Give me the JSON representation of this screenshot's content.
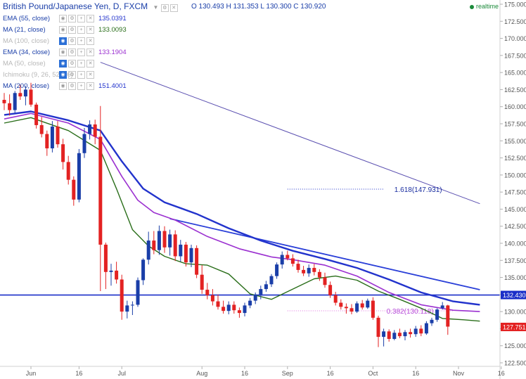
{
  "header": {
    "title": "British Pound/Japanese Yen, D, FXCM",
    "ohlc": "O 130.493 H 131.353 L 130.300 C 130.920",
    "realtime": "realtime"
  },
  "indicators": [
    {
      "name": "EMA (55, close)",
      "value": "135.0391",
      "color": "#2233cc",
      "faded": false
    },
    {
      "name": "MA (21, close)",
      "value": "133.0093",
      "color": "#2a6e1a",
      "faded": false
    },
    {
      "name": "MA (100, close)",
      "value": "",
      "color": "#b8b8b8",
      "faded": true
    },
    {
      "name": "EMA (34, close)",
      "value": "133.1904",
      "color": "#9b30d0",
      "faded": false
    },
    {
      "name": "MA (50, close)",
      "value": "",
      "color": "#b8b8b8",
      "faded": true
    },
    {
      "name": "Ichimoku (9, 26, 52, 26)",
      "value": "",
      "color": "#b8b8b8",
      "faded": true
    },
    {
      "name": "MA (200, close)",
      "value": "151.4001",
      "color": "#2233cc",
      "faded": false
    }
  ],
  "chart_data": {
    "type": "candlestick",
    "ylim": [
      122.5,
      175.0
    ],
    "y_ticks": [
      "122.500",
      "125.000",
      "127.500",
      "130.000",
      "132.500",
      "135.000",
      "137.500",
      "140.000",
      "142.500",
      "145.000",
      "147.500",
      "150.000",
      "152.500",
      "155.000",
      "157.500",
      "160.000",
      "162.500",
      "165.000",
      "167.500",
      "170.000",
      "172.500",
      "175.000"
    ],
    "x_ticks": [
      {
        "label": "Jun",
        "index": 5
      },
      {
        "label": "16",
        "index": 14
      },
      {
        "label": "Jul",
        "index": 22
      },
      {
        "label": "Aug",
        "index": 37
      },
      {
        "label": "16",
        "index": 45
      },
      {
        "label": "Sep",
        "index": 53
      },
      {
        "label": "16",
        "index": 61
      },
      {
        "label": "Oct",
        "index": 69
      },
      {
        "label": "16",
        "index": 77
      },
      {
        "label": "Nov",
        "index": 85
      },
      {
        "label": "16",
        "index": 93
      }
    ],
    "candles": [
      [
        161.0,
        162.0,
        159.5,
        160.5
      ],
      [
        160.5,
        161.8,
        158.7,
        159.5
      ],
      [
        159.5,
        162.3,
        159.0,
        162.0
      ],
      [
        162.0,
        163.2,
        161.0,
        161.5
      ],
      [
        161.5,
        163.0,
        160.2,
        162.5
      ],
      [
        162.5,
        163.5,
        160.0,
        160.3
      ],
      [
        160.3,
        160.6,
        156.8,
        157.3
      ],
      [
        157.3,
        158.5,
        155.5,
        156.0
      ],
      [
        156.0,
        156.5,
        152.8,
        153.9
      ],
      [
        153.9,
        157.9,
        153.3,
        157.1
      ],
      [
        157.1,
        157.9,
        154.0,
        154.5
      ],
      [
        154.5,
        155.3,
        150.8,
        151.9
      ],
      [
        151.9,
        152.8,
        148.6,
        149.3
      ],
      [
        149.3,
        149.8,
        145.5,
        146.4
      ],
      [
        146.4,
        153.8,
        146.0,
        153.2
      ],
      [
        153.2,
        156.9,
        152.5,
        156.0
      ],
      [
        156.0,
        158.0,
        155.2,
        157.4
      ],
      [
        157.4,
        158.1,
        154.5,
        155.6
      ],
      [
        155.6,
        160.1,
        133.0,
        139.8
      ],
      [
        139.8,
        140.1,
        133.3,
        135.8
      ],
      [
        135.8,
        137.0,
        133.8,
        136.0
      ],
      [
        136.0,
        137.3,
        134.1,
        134.7
      ],
      [
        134.7,
        135.4,
        128.8,
        130.0
      ],
      [
        130.0,
        131.6,
        129.0,
        130.9
      ],
      [
        130.9,
        131.5,
        129.5,
        131.0
      ],
      [
        131.0,
        135.0,
        130.7,
        134.6
      ],
      [
        134.6,
        137.8,
        133.9,
        137.6
      ],
      [
        137.6,
        141.7,
        136.9,
        140.4
      ],
      [
        140.4,
        141.8,
        138.4,
        139.0
      ],
      [
        139.0,
        142.6,
        138.3,
        141.8
      ],
      [
        141.8,
        142.5,
        138.6,
        139.4
      ],
      [
        139.4,
        142.0,
        138.2,
        141.3
      ],
      [
        141.3,
        141.9,
        137.4,
        138.1
      ],
      [
        138.1,
        140.5,
        137.3,
        139.8
      ],
      [
        139.8,
        140.2,
        136.6,
        137.2
      ],
      [
        137.2,
        139.8,
        136.5,
        139.3
      ],
      [
        139.3,
        139.7,
        134.9,
        135.4
      ],
      [
        135.4,
        136.8,
        132.6,
        133.2
      ],
      [
        133.2,
        134.2,
        131.8,
        132.4
      ],
      [
        132.4,
        133.3,
        130.9,
        131.5
      ],
      [
        131.5,
        132.5,
        130.3,
        130.7
      ],
      [
        130.7,
        131.6,
        129.7,
        130.1
      ],
      [
        130.1,
        131.5,
        129.6,
        131.0
      ],
      [
        131.0,
        131.5,
        129.7,
        130.2
      ],
      [
        130.2,
        130.6,
        129.1,
        129.8
      ],
      [
        129.8,
        131.3,
        129.3,
        130.9
      ],
      [
        130.9,
        132.0,
        130.5,
        131.6
      ],
      [
        131.6,
        132.8,
        131.1,
        132.5
      ],
      [
        132.5,
        133.8,
        131.8,
        133.3
      ],
      [
        133.3,
        134.5,
        132.9,
        134.0
      ],
      [
        134.0,
        135.5,
        133.6,
        135.2
      ],
      [
        135.2,
        137.2,
        134.8,
        136.9
      ],
      [
        136.9,
        138.8,
        136.3,
        138.3
      ],
      [
        138.3,
        138.9,
        137.5,
        137.8
      ],
      [
        137.8,
        138.4,
        136.6,
        137.0
      ],
      [
        137.0,
        137.6,
        135.7,
        136.1
      ],
      [
        136.1,
        136.7,
        135.2,
        135.6
      ],
      [
        135.6,
        136.9,
        135.1,
        136.4
      ],
      [
        136.4,
        137.0,
        135.3,
        135.8
      ],
      [
        135.8,
        136.2,
        134.5,
        135.0
      ],
      [
        135.0,
        135.7,
        133.5,
        133.9
      ],
      [
        133.9,
        134.4,
        132.0,
        132.4
      ],
      [
        132.4,
        132.9,
        130.9,
        131.3
      ],
      [
        131.3,
        131.8,
        130.3,
        130.7
      ],
      [
        130.7,
        131.2,
        129.7,
        130.5
      ],
      [
        130.5,
        131.1,
        129.6,
        130.0
      ],
      [
        130.0,
        131.5,
        129.8,
        131.2
      ],
      [
        131.2,
        131.7,
        130.3,
        130.6
      ],
      [
        130.6,
        131.9,
        130.4,
        131.6
      ],
      [
        131.6,
        132.1,
        128.8,
        129.1
      ],
      [
        129.1,
        129.4,
        124.8,
        126.3
      ],
      [
        126.3,
        127.5,
        124.9,
        127.1
      ],
      [
        127.1,
        127.4,
        125.6,
        126.0
      ],
      [
        126.0,
        127.3,
        125.8,
        126.9
      ],
      [
        126.9,
        127.5,
        126.1,
        126.4
      ],
      [
        126.4,
        127.3,
        125.8,
        127.0
      ],
      [
        127.0,
        127.5,
        126.2,
        126.7
      ],
      [
        126.7,
        127.9,
        126.3,
        127.5
      ],
      [
        127.5,
        128.0,
        126.4,
        126.8
      ],
      [
        126.8,
        128.6,
        126.6,
        128.3
      ],
      [
        128.3,
        129.1,
        127.9,
        128.8
      ],
      [
        128.8,
        130.5,
        128.5,
        130.3
      ],
      [
        130.5,
        131.4,
        130.3,
        130.9
      ],
      [
        130.9,
        131.0,
        126.6,
        127.8
      ]
    ],
    "moving_averages": [
      {
        "name": "EMA (55, close)",
        "color": "#2233cc",
        "width": 2.4,
        "points": [
          [
            0,
            158.8
          ],
          [
            5,
            159.3
          ],
          [
            12,
            158.0
          ],
          [
            18,
            156.5
          ],
          [
            22,
            152.0
          ],
          [
            26,
            148.0
          ],
          [
            30,
            146.0
          ],
          [
            36,
            144.3
          ],
          [
            42,
            142.2
          ],
          [
            48,
            140.4
          ],
          [
            54,
            138.9
          ],
          [
            60,
            137.7
          ],
          [
            66,
            136.4
          ],
          [
            72,
            134.7
          ],
          [
            78,
            132.8
          ],
          [
            84,
            131.5
          ],
          [
            88,
            131.1
          ],
          [
            89,
            131.0
          ]
        ]
      },
      {
        "name": "EMA (34, close)",
        "color": "#9b30d0",
        "width": 1.6,
        "points": [
          [
            0,
            158.2
          ],
          [
            5,
            159.0
          ],
          [
            12,
            157.6
          ],
          [
            18,
            155.2
          ],
          [
            22,
            149.8
          ],
          [
            25,
            146.3
          ],
          [
            28,
            144.5
          ],
          [
            32,
            143.4
          ],
          [
            38,
            141.0
          ],
          [
            44,
            139.2
          ],
          [
            50,
            138.0
          ],
          [
            54,
            137.6
          ],
          [
            60,
            136.8
          ],
          [
            66,
            135.2
          ],
          [
            72,
            132.8
          ],
          [
            78,
            131.0
          ],
          [
            84,
            130.2
          ],
          [
            89,
            130.0
          ]
        ]
      },
      {
        "name": "MA (21, close)",
        "color": "#2a6e1a",
        "width": 1.4,
        "points": [
          [
            0,
            157.6
          ],
          [
            5,
            158.4
          ],
          [
            12,
            156.5
          ],
          [
            18,
            153.6
          ],
          [
            21,
            148.0
          ],
          [
            24,
            142.0
          ],
          [
            27,
            139.6
          ],
          [
            30,
            138.1
          ],
          [
            34,
            137.0
          ],
          [
            38,
            136.8
          ],
          [
            42,
            135.5
          ],
          [
            46,
            132.6
          ],
          [
            50,
            131.8
          ],
          [
            54,
            133.3
          ],
          [
            58,
            134.8
          ],
          [
            62,
            135.2
          ],
          [
            66,
            134.6
          ],
          [
            70,
            133.0
          ],
          [
            74,
            131.8
          ],
          [
            78,
            130.5
          ],
          [
            82,
            129.0
          ],
          [
            86,
            128.8
          ],
          [
            89,
            128.6
          ]
        ]
      }
    ],
    "ma200": {
      "name": "MA (200, close)",
      "from": [
        18,
        166.5
      ],
      "to": [
        89,
        145.8
      ]
    },
    "trendline": {
      "from": [
        31,
        143.6
      ],
      "to": [
        89,
        133.2
      ]
    },
    "horizontal_level": {
      "value": 132.43,
      "label": "132.430"
    },
    "last_price": {
      "value": 127.751,
      "label": "127.751"
    },
    "fib_levels": [
      {
        "label": "1.618(147.931)",
        "value": 147.931,
        "from": 53,
        "to": 71
      },
      {
        "label": "0.382(130.118)",
        "value": 130.118,
        "from": 53,
        "to": 84
      }
    ]
  }
}
